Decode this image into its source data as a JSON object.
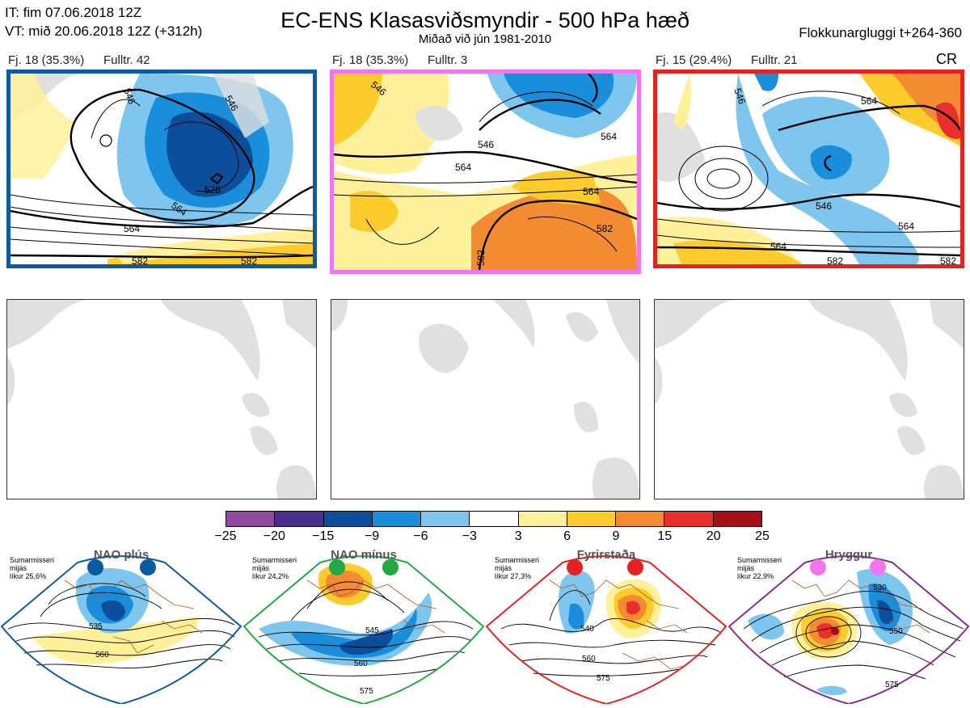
{
  "header": {
    "it_line": "IT: fim 07.06.2018 12Z",
    "vt_line": "VT: mið 20.06.2018 12Z  (+312h)",
    "title": "EC-ENS Klasasviðsmyndir - 500 hPa hæð",
    "subtitle": "Miðað við jún 1981-2010",
    "window": "Flokkunargluggi t+264-360"
  },
  "panels": [
    {
      "label": "Fj. 18 (35.3%)",
      "rep": "Fulltr. 42",
      "border_color": "#0b5aa3",
      "regime_tag": ""
    },
    {
      "label": "Fj. 18 (35.3%)",
      "rep": "Fulltr. 3",
      "border_color": "#ee77ee",
      "regime_tag": ""
    },
    {
      "label": "Fj. 15 (29.4%)",
      "rep": "Fulltr. 21",
      "border_color": "#e52222",
      "regime_tag": "CR"
    }
  ],
  "contour_labels": {
    "p1": [
      "546",
      "546",
      "528",
      "564",
      "564",
      "582",
      "582"
    ],
    "p2": [
      "546",
      "564",
      "546",
      "564",
      "582",
      "564",
      "582"
    ],
    "p3": [
      "546",
      "564",
      "546",
      "564",
      "564",
      "582",
      "582"
    ]
  },
  "colorbar": {
    "colors": [
      "#8e4a9c",
      "#4b2d8e",
      "#0b4f9c",
      "#1a8ddb",
      "#7fc6ef",
      "#ffffff",
      "#fff09a",
      "#fdcb2c",
      "#f28b32",
      "#e7302b",
      "#a50f15"
    ],
    "ticks": [
      "−25",
      "−20",
      "−15",
      "−9",
      "−6",
      "−3",
      "3",
      "6",
      "9",
      "15",
      "20",
      "25"
    ]
  },
  "regimes": [
    {
      "name": "NAO plús",
      "note": [
        "Sumarmisseri",
        "mijás",
        "líkur 25,6%"
      ],
      "color": "#0b5aa3",
      "labels": [
        "535",
        "560"
      ]
    },
    {
      "name": "NAO mínus",
      "note": [
        "Sumarmisseri",
        "mijás",
        "líkur 24,2%"
      ],
      "color": "#22a844",
      "labels": [
        "545",
        "560",
        "575"
      ]
    },
    {
      "name": "Fyrirstaða",
      "note": [
        "Sumarmisseri",
        "mijás",
        "líkur 27,3%"
      ],
      "color": "#e52222",
      "labels": [
        "540",
        "560",
        "575"
      ]
    },
    {
      "name": "Hryggur",
      "note": [
        "Sumarmisseri",
        "mijás",
        "líkur 22,9%"
      ],
      "color": "#ee77ee",
      "labels": [
        "530",
        "550",
        "575"
      ]
    }
  ]
}
